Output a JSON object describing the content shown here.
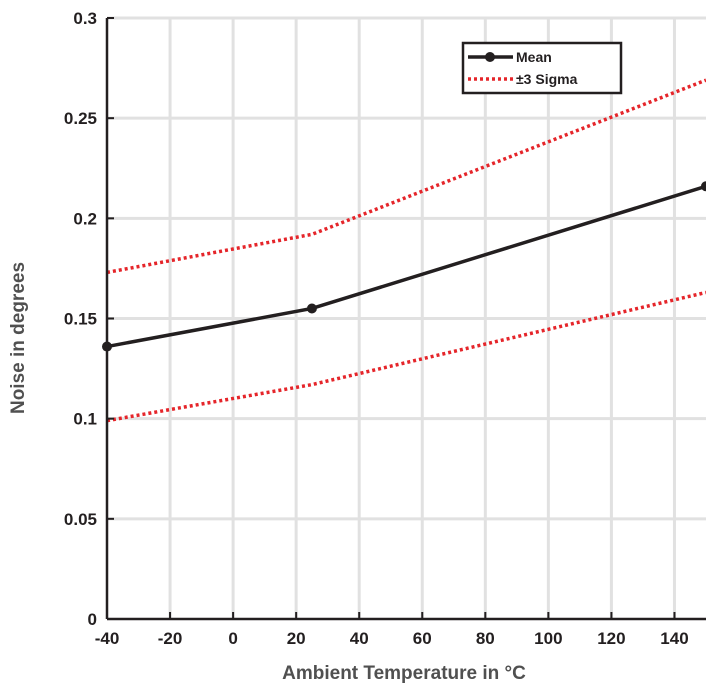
{
  "chart_data": {
    "type": "line",
    "title": "",
    "xlabel": "Ambient Temperature in °C",
    "ylabel": "Noise in degrees",
    "xlim": [
      -40,
      150
    ],
    "ylim": [
      0,
      0.3
    ],
    "xticks": [
      -40,
      -20,
      0,
      20,
      40,
      60,
      80,
      100,
      120,
      140
    ],
    "xtick_labels": [
      "-40",
      "-20",
      "0",
      "20",
      "40",
      "60",
      "80",
      "100",
      "120",
      "140"
    ],
    "yticks": [
      0,
      0.05,
      0.1,
      0.15,
      0.2,
      0.25,
      0.3
    ],
    "ytick_labels": [
      "0",
      "0.05",
      "0.1",
      "0.15",
      "0.2",
      "0.25",
      "0.3"
    ],
    "grid": true,
    "legend_position": "top-right",
    "series": [
      {
        "name": "Mean",
        "color": "#231f20",
        "style": "solid-with-markers",
        "x": [
          -40,
          25,
          150
        ],
        "y": [
          0.136,
          0.155,
          0.216
        ]
      },
      {
        "name": "±3 Sigma",
        "color": "#e5252a",
        "style": "dotted",
        "bands": [
          {
            "x": [
              -40,
              25,
              150
            ],
            "y": [
              0.173,
              0.192,
              0.269
            ]
          },
          {
            "x": [
              -40,
              25,
              150
            ],
            "y": [
              0.099,
              0.117,
              0.163
            ]
          }
        ]
      }
    ]
  }
}
